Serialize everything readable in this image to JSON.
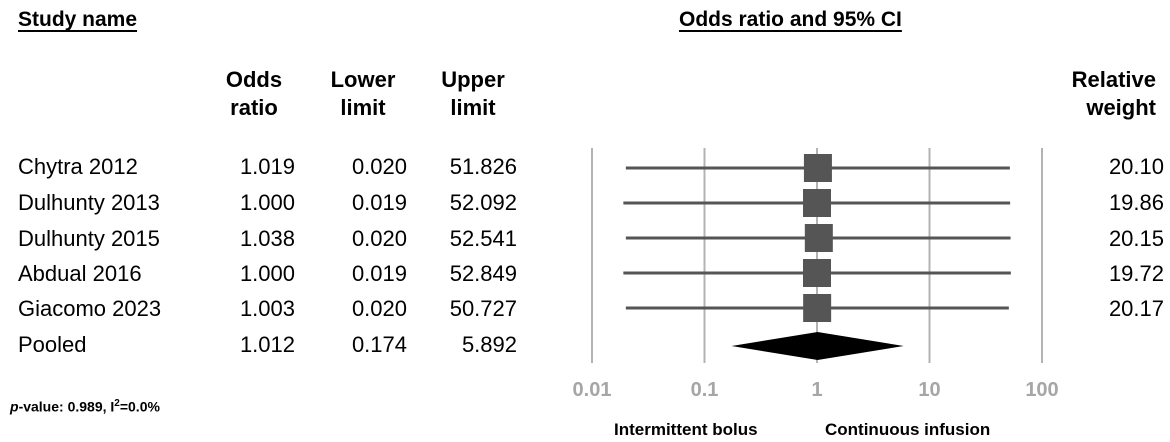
{
  "headers": {
    "study_name": "Study name",
    "plot_title": "Odds ratio and 95% CI",
    "odds_ratio_l1": "Odds",
    "odds_ratio_l2": "ratio",
    "lower_l1": "Lower",
    "lower_l2": "limit",
    "upper_l1": "Upper",
    "upper_l2": "limit",
    "weight_l1": "Relative",
    "weight_l2": "weight"
  },
  "rows": [
    {
      "study": "Chytra 2012",
      "or": "1.019",
      "lower": "0.020",
      "upper": "51.826",
      "weight": "20.10"
    },
    {
      "study": "Dulhunty 2013",
      "or": "1.000",
      "lower": "0.019",
      "upper": "52.092",
      "weight": "19.86"
    },
    {
      "study": "Dulhunty 2015",
      "or": "1.038",
      "lower": "0.020",
      "upper": "52.541",
      "weight": "20.15"
    },
    {
      "study": "Abdual 2016",
      "or": "1.000",
      "lower": "0.019",
      "upper": "52.849",
      "weight": "19.72"
    },
    {
      "study": "Giacomo 2023",
      "or": "1.003",
      "lower": "0.020",
      "upper": "50.727",
      "weight": "20.17"
    },
    {
      "study": "Pooled",
      "or": "1.012",
      "lower": "0.174",
      "upper": "5.892",
      "weight": ""
    }
  ],
  "footer": {
    "p_italic": "p",
    "p_rest": "-value: 0.989, I",
    "i2_sup": "2",
    "i2_rest": "=0.0%"
  },
  "axis_labels": {
    "left": "Intermittent bolus",
    "right": "Continuous infusion"
  },
  "chart_data": {
    "type": "forest",
    "scale": "log",
    "xlim": [
      0.01,
      100
    ],
    "ticks": [
      "0.01",
      "0.1",
      "1",
      "10",
      "100"
    ],
    "tick_values": [
      0.01,
      0.1,
      1,
      10,
      100
    ],
    "studies": [
      {
        "label": "Chytra 2012",
        "or": 1.019,
        "lower": 0.02,
        "upper": 51.826,
        "weight": 20.1
      },
      {
        "label": "Dulhunty 2013",
        "or": 1.0,
        "lower": 0.019,
        "upper": 52.092,
        "weight": 19.86
      },
      {
        "label": "Dulhunty 2015",
        "or": 1.038,
        "lower": 0.02,
        "upper": 52.541,
        "weight": 20.15
      },
      {
        "label": "Abdual 2016",
        "or": 1.0,
        "lower": 0.019,
        "upper": 52.849,
        "weight": 19.72
      },
      {
        "label": "Giacomo 2023",
        "or": 1.003,
        "lower": 0.02,
        "upper": 50.727,
        "weight": 20.17
      }
    ],
    "pooled": {
      "label": "Pooled",
      "or": 1.012,
      "lower": 0.174,
      "upper": 5.892
    },
    "colors": {
      "marker": "#555555",
      "line": "#555555",
      "grid": "#b3b3b3",
      "diamond": "#000000",
      "tick_text": "#a6a6a6"
    }
  }
}
